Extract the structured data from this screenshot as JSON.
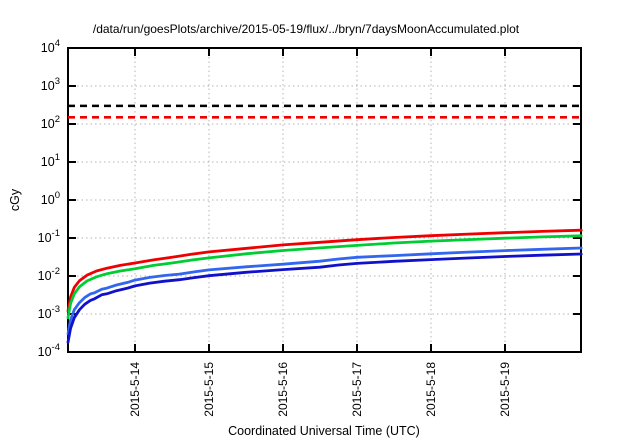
{
  "window": {
    "title": "/data/run/goesPlots/archive/2015-05-19/flux/../bryn/7daysMoonAccumulated.plot"
  },
  "chart_data": {
    "type": "line",
    "title": "/data/run/goesPlots/archive/2015-05-19/flux/../bryn/7daysMoonAccumulated.plot",
    "xlabel": "Coordinated Universal Time (UTC)",
    "ylabel": "cGy",
    "y_scale": "log",
    "ylim": [
      0.0001,
      10000
    ],
    "y_tick_exponents": [
      4,
      3,
      2,
      1,
      0,
      -1,
      -2,
      -3,
      -4
    ],
    "x_tick_labels": [
      "2015-5-14",
      "2015-5-15",
      "2015-5-16",
      "2015-5-17",
      "2015-5-18",
      "2015-5-19"
    ],
    "x_tick_days": [
      0,
      1,
      2,
      3,
      4,
      5
    ],
    "x_range_days": [
      -0.905,
      6.03
    ],
    "grid": true,
    "legend": "none",
    "thresholds": [
      {
        "name": "upper-limit-line",
        "value_cGy": 300,
        "color": "#000000",
        "style": "dashed"
      },
      {
        "name": "lower-limit-line",
        "value_cGy": 150,
        "color": "#ee0000",
        "style": "dashed"
      }
    ],
    "series": [
      {
        "name": "dose-red",
        "color": "#ee0000",
        "points": [
          [
            -0.905,
            0.0012
          ],
          [
            -0.87,
            0.0028
          ],
          [
            -0.82,
            0.005
          ],
          [
            -0.75,
            0.0075
          ],
          [
            -0.65,
            0.0105
          ],
          [
            -0.52,
            0.0135
          ],
          [
            -0.38,
            0.016
          ],
          [
            -0.2,
            0.019
          ],
          [
            0,
            0.022
          ],
          [
            0.25,
            0.0265
          ],
          [
            0.5,
            0.031
          ],
          [
            0.75,
            0.037
          ],
          [
            1,
            0.043
          ],
          [
            1.3,
            0.049
          ],
          [
            1.6,
            0.0555
          ],
          [
            2,
            0.066
          ],
          [
            2.5,
            0.077
          ],
          [
            3,
            0.09
          ],
          [
            3.5,
            0.103
          ],
          [
            4,
            0.115
          ],
          [
            4.5,
            0.127
          ],
          [
            5,
            0.138
          ],
          [
            5.5,
            0.149
          ],
          [
            6.03,
            0.16
          ]
        ]
      },
      {
        "name": "dose-green",
        "color": "#00cc33",
        "points": [
          [
            -0.905,
            0.0008
          ],
          [
            -0.87,
            0.0019
          ],
          [
            -0.82,
            0.0034
          ],
          [
            -0.75,
            0.0052
          ],
          [
            -0.65,
            0.0074
          ],
          [
            -0.52,
            0.0095
          ],
          [
            -0.38,
            0.0115
          ],
          [
            -0.2,
            0.0135
          ],
          [
            0,
            0.0155
          ],
          [
            0.25,
            0.019
          ],
          [
            0.5,
            0.022
          ],
          [
            0.75,
            0.026
          ],
          [
            1,
            0.03
          ],
          [
            1.5,
            0.0385
          ],
          [
            2,
            0.047
          ],
          [
            2.5,
            0.055
          ],
          [
            3,
            0.064
          ],
          [
            3.5,
            0.074
          ],
          [
            4,
            0.083
          ],
          [
            4.5,
            0.091
          ],
          [
            5,
            0.099
          ],
          [
            5.5,
            0.107
          ],
          [
            6.03,
            0.114
          ]
        ]
      },
      {
        "name": "dose-lightblue",
        "color": "#3366ee",
        "points": [
          [
            -0.905,
            0.0003
          ],
          [
            -0.87,
            0.0007
          ],
          [
            -0.82,
            0.0013
          ],
          [
            -0.75,
            0.002
          ],
          [
            -0.68,
            0.0027
          ],
          [
            -0.6,
            0.0034
          ],
          [
            -0.55,
            0.0036
          ],
          [
            -0.45,
            0.0045
          ],
          [
            -0.38,
            0.0048
          ],
          [
            -0.25,
            0.0058
          ],
          [
            -0.1,
            0.0068
          ],
          [
            0,
            0.0078
          ],
          [
            0.2,
            0.0092
          ],
          [
            0.4,
            0.0103
          ],
          [
            0.6,
            0.0112
          ],
          [
            0.8,
            0.0128
          ],
          [
            1,
            0.0145
          ],
          [
            1.5,
            0.0175
          ],
          [
            2,
            0.0205
          ],
          [
            2.5,
            0.0245
          ],
          [
            2.75,
            0.028
          ],
          [
            3,
            0.031
          ],
          [
            3.5,
            0.0345
          ],
          [
            4,
            0.0385
          ],
          [
            4.5,
            0.0425
          ],
          [
            5,
            0.0465
          ],
          [
            5.5,
            0.0505
          ],
          [
            6.03,
            0.0545
          ]
        ]
      },
      {
        "name": "dose-darkblue",
        "color": "#1111cc",
        "points": [
          [
            -0.905,
            0.00018
          ],
          [
            -0.87,
            0.00042
          ],
          [
            -0.82,
            0.0008
          ],
          [
            -0.75,
            0.0013
          ],
          [
            -0.68,
            0.0018
          ],
          [
            -0.6,
            0.0023
          ],
          [
            -0.55,
            0.0025
          ],
          [
            -0.45,
            0.0032
          ],
          [
            -0.38,
            0.0034
          ],
          [
            -0.25,
            0.0041
          ],
          [
            -0.1,
            0.0048
          ],
          [
            0,
            0.0055
          ],
          [
            0.2,
            0.0065
          ],
          [
            0.4,
            0.0073
          ],
          [
            0.6,
            0.008
          ],
          [
            0.8,
            0.0091
          ],
          [
            1,
            0.0102
          ],
          [
            1.5,
            0.0125
          ],
          [
            2,
            0.0147
          ],
          [
            2.5,
            0.017
          ],
          [
            2.75,
            0.0195
          ],
          [
            3,
            0.0215
          ],
          [
            3.5,
            0.0243
          ],
          [
            4,
            0.027
          ],
          [
            4.5,
            0.0297
          ],
          [
            5,
            0.0325
          ],
          [
            5.5,
            0.0352
          ],
          [
            6.03,
            0.038
          ]
        ]
      }
    ],
    "style": {
      "grid_color": "#b4b4b4",
      "frame_color": "#000000",
      "background": "#ffffff"
    }
  }
}
